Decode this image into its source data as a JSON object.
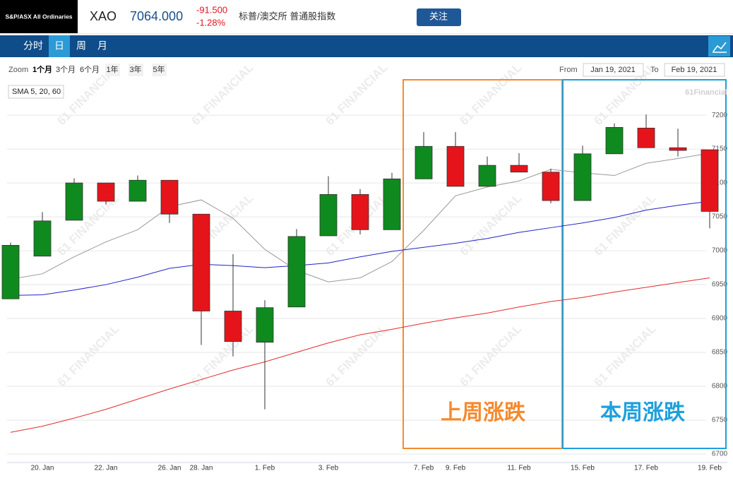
{
  "header": {
    "logo": "S&P/ASX All Ordinaries",
    "symbol": "XAO",
    "price": "7064.000",
    "change": "-91.500",
    "change_pct": "-1.28%",
    "name": "标普/澳交所 普通股指数",
    "follow": "关注"
  },
  "tabs": [
    "分时",
    "日",
    "周",
    "月"
  ],
  "zoom": {
    "label": "Zoom",
    "options": [
      "1个月",
      "3个月",
      "6个月",
      "1年",
      "3年",
      "5年"
    ],
    "from_label": "From",
    "from": "Jan 19, 2021",
    "to_label": "To",
    "to": "Feb 19, 2021"
  },
  "chart_data": {
    "type": "candlestick",
    "legend": "SMA 5, 20, 60",
    "credit": "61Financial",
    "watermark": "61 FINANCIAL",
    "categories": [
      null,
      "20. Jan",
      null,
      "22. Jan",
      null,
      "26. Jan",
      "28. Jan",
      null,
      "1. Feb",
      null,
      "3. Feb",
      null,
      null,
      "7. Feb",
      "9. Feb",
      null,
      "11. Feb",
      null,
      "15. Feb",
      null,
      "17. Feb",
      null,
      "19. Feb"
    ],
    "open": [
      6929,
      6992,
      7045,
      7100,
      7073,
      7104,
      7054,
      6911,
      6865,
      6917,
      7022,
      7083,
      7031,
      7106,
      7154,
      7095,
      7126,
      7116,
      7074,
      7143,
      7181,
      7152,
      7149
    ],
    "high": [
      7012,
      7057,
      7107,
      7100,
      7111,
      7104,
      7054,
      6995,
      6927,
      7032,
      7110,
      7091,
      7115,
      7175,
      7175,
      7139,
      7144,
      7121,
      7155,
      7188,
      7201,
      7180,
      7149
    ],
    "low": [
      6929,
      6992,
      7045,
      7068,
      7073,
      7041,
      6861,
      6844,
      6766,
      6917,
      7022,
      7024,
      7031,
      7106,
      7095,
      7095,
      7116,
      7070,
      7074,
      7143,
      7152,
      7139,
      7033
    ],
    "close": [
      7008,
      7044,
      7100,
      7073,
      7104,
      7054,
      6911,
      6866,
      6916,
      7021,
      7083,
      7031,
      7106,
      7154,
      7095,
      7126,
      7116,
      7074,
      7143,
      7182,
      7152,
      7148,
      7058
    ],
    "up_color": "#0f8a1f",
    "down_color": "#e5141b",
    "sma": [
      {
        "color": "#999999",
        "values": [
          6958,
          6966,
          6991,
          7013,
          7031,
          7065,
          7075,
          7048,
          7002,
          6971,
          6954,
          6960,
          6984,
          7030,
          7081,
          7094,
          7103,
          7120,
          7115,
          7111,
          7129,
          7136,
          7144
        ]
      },
      {
        "color": "#2323c8",
        "values": [
          6934,
          6935,
          6942,
          6950,
          6961,
          6974,
          6980,
          6978,
          6975,
          6978,
          6982,
          6991,
          6999,
          7005,
          7011,
          7018,
          7027,
          7034,
          7041,
          7049,
          7060,
          7067,
          7073
        ]
      },
      {
        "color": "#e52b2b",
        "values": [
          6732,
          6741,
          6753,
          6766,
          6781,
          6796,
          6810,
          6824,
          6836,
          6850,
          6864,
          6876,
          6884,
          6893,
          6901,
          6908,
          6917,
          6925,
          6931,
          6939,
          6946,
          6953,
          6960
        ]
      }
    ],
    "ylim": [
      6687.5,
      7247
    ],
    "yticks": [
      6700,
      6750,
      6800,
      6850,
      6900,
      6950,
      7000,
      7050,
      7100,
      7150,
      7200
    ],
    "grid": true,
    "annotations": [
      {
        "text": "上周涨跌",
        "color": "#f58a2e"
      },
      {
        "text": "本周涨跌",
        "color": "#1ea0dc"
      }
    ]
  }
}
